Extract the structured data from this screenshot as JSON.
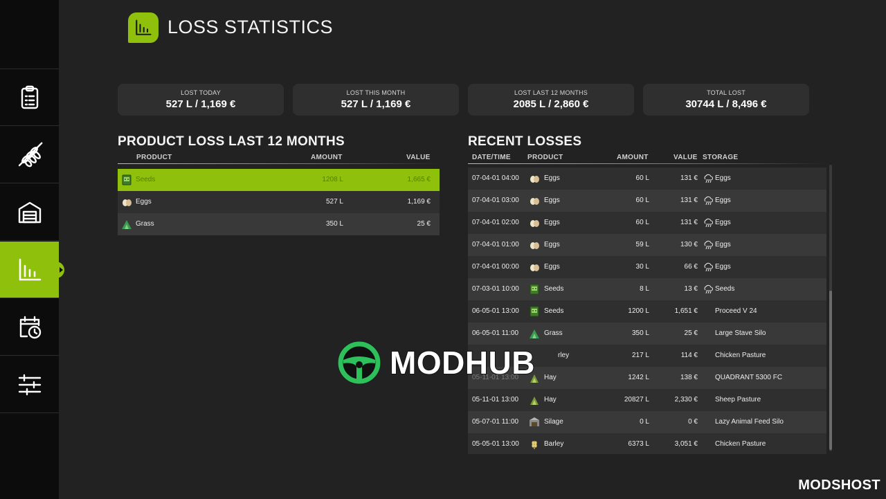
{
  "header": {
    "title": "LOSS STATISTICS",
    "icon": "bar-chart-icon"
  },
  "sidebar": {
    "items": [
      {
        "icon": "clipboard-icon",
        "active": false
      },
      {
        "icon": "wheat-icon",
        "active": false
      },
      {
        "icon": "garage-icon",
        "active": false
      },
      {
        "icon": "bar-chart-icon",
        "active": true
      },
      {
        "icon": "calendar-clock-icon",
        "active": false
      },
      {
        "icon": "sliders-icon",
        "active": false
      }
    ]
  },
  "stats": [
    {
      "label": "LOST TODAY",
      "value": "527 L / 1,169 €"
    },
    {
      "label": "LOST THIS MONTH",
      "value": "527 L / 1,169 €"
    },
    {
      "label": "LOST LAST 12 MONTHS",
      "value": "2085 L / 2,860 €"
    },
    {
      "label": "TOTAL LOST",
      "value": "30744 L / 8,496 €"
    }
  ],
  "product_loss": {
    "title": "PRODUCT LOSS LAST 12 MONTHS",
    "columns": {
      "product": "PRODUCT",
      "amount": "AMOUNT",
      "value": "VALUE"
    },
    "rows": [
      {
        "product": "Seeds",
        "amount": "1208 L",
        "value": "1,665 €",
        "icon": "seeds-icon",
        "selected": true
      },
      {
        "product": "Eggs",
        "amount": "527 L",
        "value": "1,169 €",
        "icon": "eggs-icon",
        "selected": false
      },
      {
        "product": "Grass",
        "amount": "350 L",
        "value": "25 €",
        "icon": "grass-icon",
        "selected": false
      }
    ]
  },
  "recent_losses": {
    "title": "RECENT LOSSES",
    "columns": {
      "datetime": "DATE/TIME",
      "product": "PRODUCT",
      "amount": "AMOUNT",
      "value": "VALUE",
      "storage": "STORAGE"
    },
    "rows": [
      {
        "datetime": "07-04-01 04:00",
        "product": "Eggs",
        "icon": "eggs-icon",
        "amount": "60 L",
        "value": "131 €",
        "storage": "Eggs",
        "storage_icon": "weather-icon"
      },
      {
        "datetime": "07-04-01 03:00",
        "product": "Eggs",
        "icon": "eggs-icon",
        "amount": "60 L",
        "value": "131 €",
        "storage": "Eggs",
        "storage_icon": "weather-icon"
      },
      {
        "datetime": "07-04-01 02:00",
        "product": "Eggs",
        "icon": "eggs-icon",
        "amount": "60 L",
        "value": "131 €",
        "storage": "Eggs",
        "storage_icon": "weather-icon"
      },
      {
        "datetime": "07-04-01 01:00",
        "product": "Eggs",
        "icon": "eggs-icon",
        "amount": "59 L",
        "value": "130 €",
        "storage": "Eggs",
        "storage_icon": "weather-icon"
      },
      {
        "datetime": "07-04-01 00:00",
        "product": "Eggs",
        "icon": "eggs-icon",
        "amount": "30 L",
        "value": "66 €",
        "storage": "Eggs",
        "storage_icon": "weather-icon"
      },
      {
        "datetime": "07-03-01 10:00",
        "product": "Seeds",
        "icon": "seeds-icon",
        "amount": "8 L",
        "value": "13 €",
        "storage": "Seeds",
        "storage_icon": "weather-icon"
      },
      {
        "datetime": "06-05-01 13:00",
        "product": "Seeds",
        "icon": "seeds-icon",
        "amount": "1200 L",
        "value": "1,651 €",
        "storage": "Proceed V 24",
        "storage_icon": ""
      },
      {
        "datetime": "06-05-01 11:00",
        "product": "Grass",
        "icon": "grass-icon",
        "amount": "350 L",
        "value": "25 €",
        "storage": "Large Stave Silo",
        "storage_icon": ""
      },
      {
        "datetime": "",
        "product": "rley",
        "icon": "barley-icon",
        "amount": "217 L",
        "value": "114 €",
        "storage": "Chicken Pasture",
        "storage_icon": ""
      },
      {
        "datetime": "05-11-01 13:00",
        "product": "Hay",
        "icon": "hay-icon",
        "amount": "1242 L",
        "value": "138 €",
        "storage": "QUADRANT 5300 FC",
        "storage_icon": ""
      },
      {
        "datetime": "05-11-01 13:00",
        "product": "Hay",
        "icon": "hay-icon",
        "amount": "20827 L",
        "value": "2,330 €",
        "storage": "Sheep Pasture",
        "storage_icon": ""
      },
      {
        "datetime": "05-07-01 11:00",
        "product": "Silage",
        "icon": "silage-icon",
        "amount": "0 L",
        "value": "0 €",
        "storage": "Lazy Animal Feed Silo",
        "storage_icon": ""
      },
      {
        "datetime": "05-05-01 13:00",
        "product": "Barley",
        "icon": "barley-icon",
        "amount": "6373 L",
        "value": "3,051 €",
        "storage": "Chicken Pasture",
        "storage_icon": ""
      }
    ]
  },
  "watermarks": {
    "modhub": "MODHUB",
    "modhub_icon": "steering-wheel-icon",
    "modshost": "MODSHOST"
  },
  "colors": {
    "accent": "#8fc10c",
    "background": "#222222",
    "sidebar": "#0c0c0c",
    "row_odd": "#2f2f2f",
    "row_even": "#393939"
  }
}
